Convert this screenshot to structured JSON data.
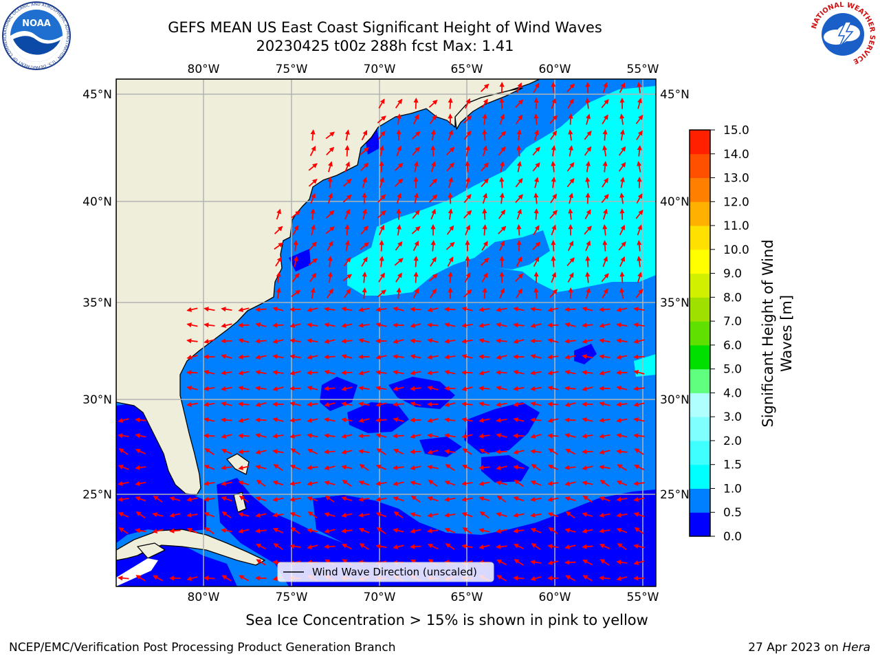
{
  "header": {
    "title_line1": "GEFS MEAN US East Coast Significant Height of Wind Waves",
    "title_line2": "20230425 t00z 288h fcst   Max: 1.41"
  },
  "logos": {
    "noaa_text": "NOAA",
    "noaa_ring": "NATIONAL OCEANIC AND ATMOSPHERIC ADMINISTRATION · U.S. DEPARTMENT OF COMMERCE",
    "nws_ring": "NATIONAL WEATHER SERVICE"
  },
  "map": {
    "lon_labels": [
      "80°W",
      "75°W",
      "70°W",
      "65°W",
      "60°W",
      "55°W"
    ],
    "lat_labels": [
      "45°N",
      "40°N",
      "35°N",
      "30°N",
      "25°N"
    ],
    "legend_label": "Wind Wave Direction (unscaled)",
    "vector_color": "#ff0000",
    "land_color": "#efeedb"
  },
  "colorbar": {
    "label_line1": "Significant Height of Wind",
    "label_line2": "Waves [m]",
    "ticks": [
      "0.0",
      "0.5",
      "1.0",
      "1.5",
      "2.0",
      "3.0",
      "4.0",
      "5.0",
      "6.0",
      "7.0",
      "8.0",
      "9.0",
      "10.0",
      "11.0",
      "12.0",
      "13.0",
      "14.0",
      "15.0"
    ],
    "colors": [
      "#0000ff",
      "#0080ff",
      "#00ffff",
      "#40ffff",
      "#80ffff",
      "#b0ffff",
      "#60ff80",
      "#00e000",
      "#60e000",
      "#a0e000",
      "#d0f000",
      "#ffff00",
      "#ffe000",
      "#ffb000",
      "#ff8000",
      "#ff5000",
      "#ff2000",
      "#ff0000"
    ]
  },
  "caption": "Sea Ice Concentration > 15% is shown in pink to yellow",
  "footer": {
    "left": "NCEP/EMC/Verification Post Processing Product Generation Branch",
    "right_date": "27 Apr 2023 on ",
    "right_machine": "Hera"
  }
}
